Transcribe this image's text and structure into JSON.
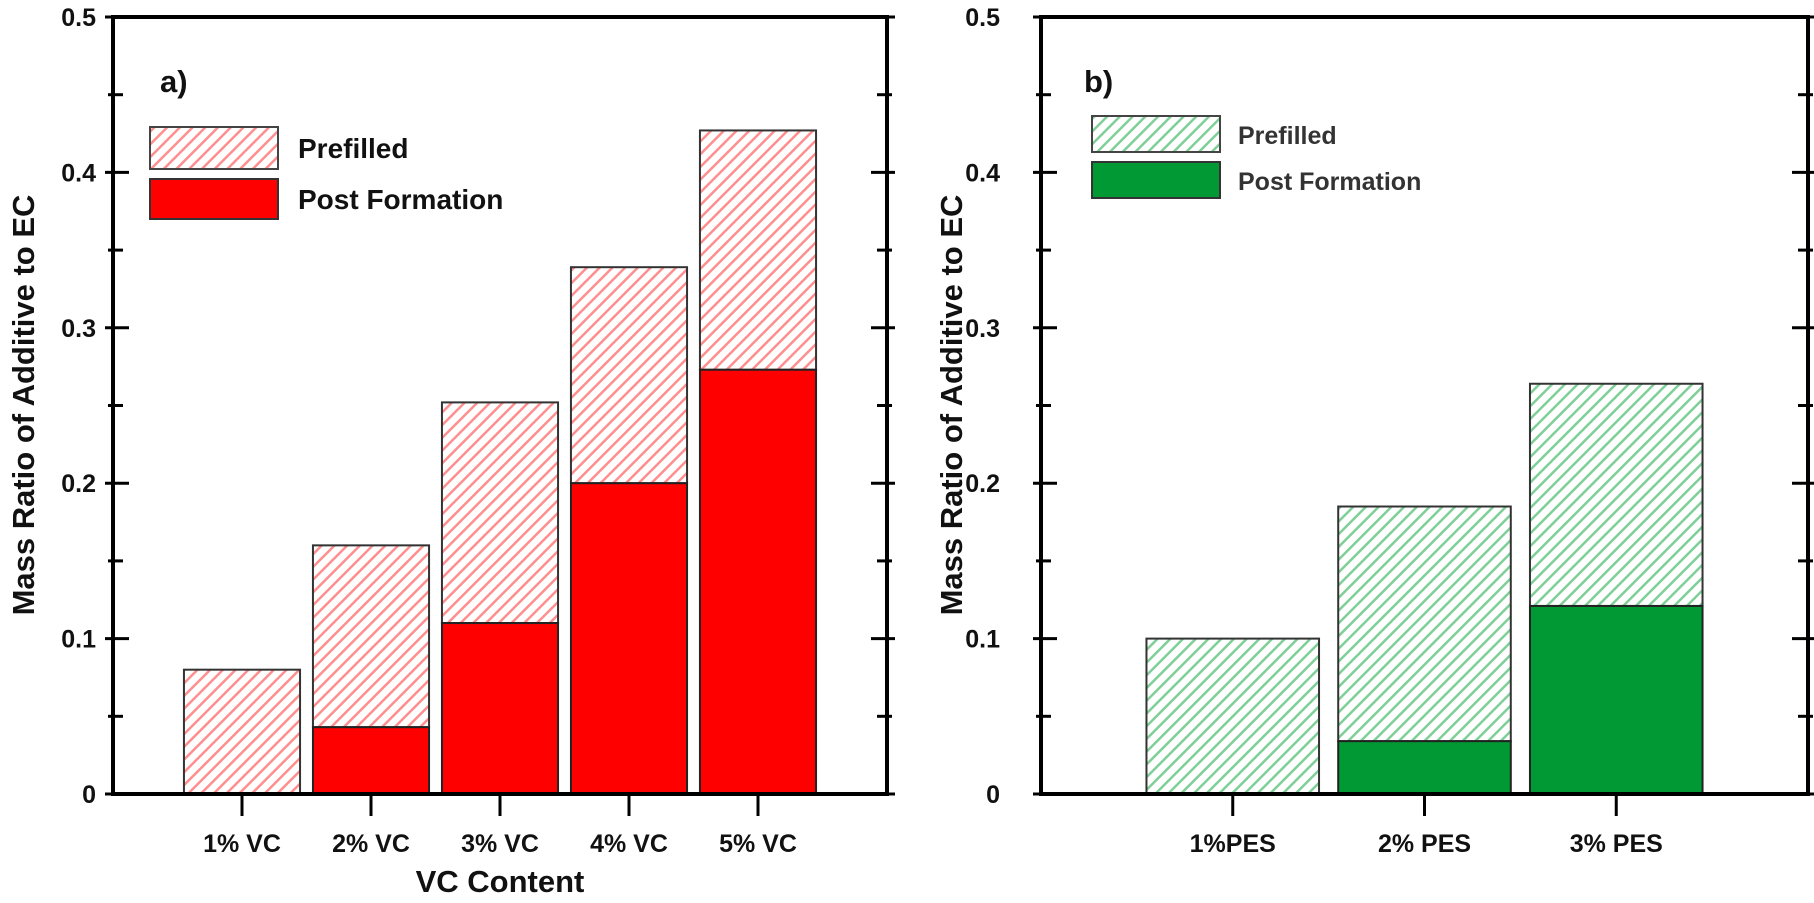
{
  "chart_data": [
    {
      "type": "bar",
      "stacked": true,
      "panel_label": "a)",
      "categories": [
        "1% VC",
        "2% VC",
        "3% VC",
        "4% VC",
        "5% VC"
      ],
      "series": [
        {
          "name": "Post Formation",
          "values": [
            0.0,
            0.043,
            0.11,
            0.2,
            0.273
          ],
          "color": "#ff0000",
          "fill": "solid"
        },
        {
          "name": "Prefilled",
          "values": [
            0.08,
            0.117,
            0.142,
            0.139,
            0.154
          ],
          "color": "#ff0000",
          "fill": "hatched"
        }
      ],
      "totals": [
        0.08,
        0.16,
        0.252,
        0.339,
        0.427
      ],
      "legend_order": [
        "Prefilled",
        "Post Formation"
      ],
      "xlabel": "VC Content",
      "ylabel": "Mass Ratio of Additive to EC",
      "ylim": [
        0,
        0.5
      ],
      "yticks": [
        "0",
        "0.1",
        "0.2",
        "0.3",
        "0.4",
        "0.5"
      ],
      "legend": "top-left",
      "grid": false
    },
    {
      "type": "bar",
      "stacked": true,
      "panel_label": "b)",
      "categories": [
        "1%PES",
        "2% PES",
        "3% PES"
      ],
      "series": [
        {
          "name": "Post Formation",
          "values": [
            0.0,
            0.034,
            0.121
          ],
          "color": "#009933",
          "fill": "solid"
        },
        {
          "name": "Prefilled",
          "values": [
            0.1,
            0.151,
            0.143
          ],
          "color": "#009933",
          "fill": "hatched"
        }
      ],
      "totals": [
        0.1,
        0.185,
        0.264
      ],
      "legend_order": [
        "Prefilled",
        "Post Formation"
      ],
      "xlabel": "",
      "ylabel": "Mass Ratio of Additive to EC",
      "ylim": [
        0,
        0.5
      ],
      "yticks": [
        "0",
        "0.1",
        "0.2",
        "0.3",
        "0.4",
        "0.5"
      ],
      "legend": "top-left",
      "grid": false
    }
  ]
}
